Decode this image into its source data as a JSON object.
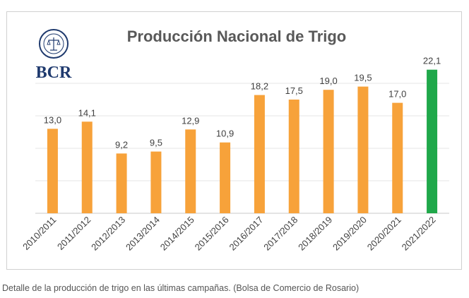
{
  "logo": {
    "text": "BCR",
    "seal_text": "BOLSA DE COMERCIO DE ROSARIO"
  },
  "chart_data": {
    "type": "bar",
    "title": "Producción Nacional de Trigo",
    "xlabel": "",
    "ylabel": "",
    "ylim": [
      0,
      25
    ],
    "grid": true,
    "legend": "none",
    "categories": [
      "2010/2011",
      "2011/2012",
      "2012/2013",
      "2013/2014",
      "2014/2015",
      "2015/2016",
      "2016/2017",
      "2017/2018",
      "2018/2019",
      "2019/2020",
      "2020/2021",
      "2021/2022"
    ],
    "values": [
      13.0,
      14.1,
      9.2,
      9.5,
      12.9,
      10.9,
      18.2,
      17.5,
      19.0,
      19.5,
      17.0,
      22.1
    ],
    "value_labels": [
      "13,0",
      "14,1",
      "9,2",
      "9,5",
      "12,9",
      "10,9",
      "18,2",
      "17,5",
      "19,0",
      "19,5",
      "17,0",
      "22,1"
    ],
    "colors": {
      "default": "#F7A23A",
      "highlight": "#1FA84A",
      "grid": "#e4e4e4",
      "axis": "#c8c8c8",
      "title": "#595959",
      "label": "#404040",
      "logo": "#1F3A6E"
    },
    "highlight_index": 11
  },
  "caption": "Detalle de la producción de trigo en las últimas campañas. (Bolsa de Comercio de Rosario)"
}
